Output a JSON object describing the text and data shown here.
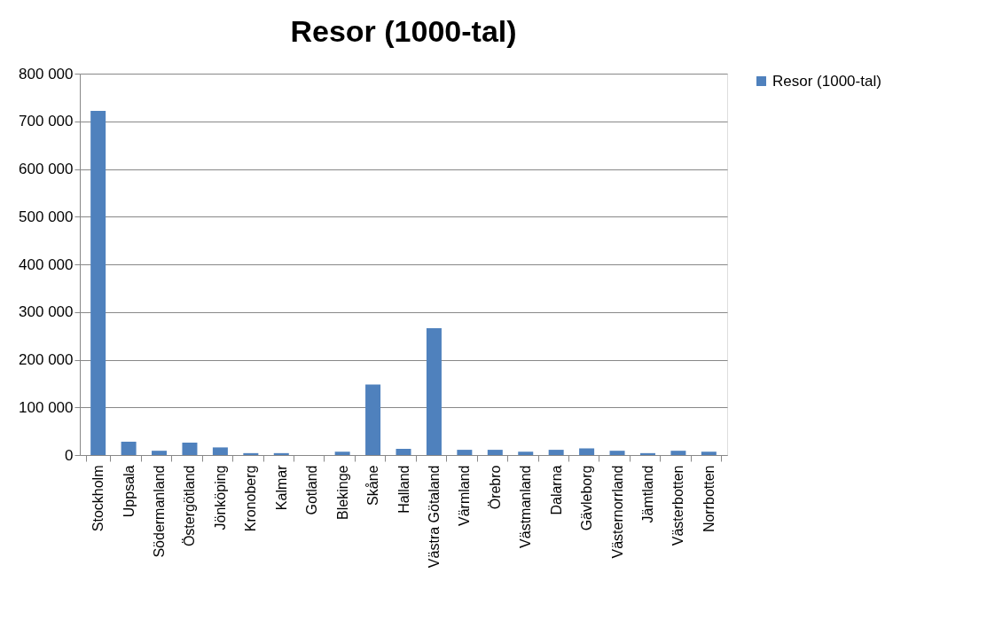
{
  "chart_data": {
    "type": "bar",
    "title": "Resor  (1000-tal)",
    "categories": [
      "Stockholm",
      "Uppsala",
      "Södermanland",
      "Östergötland",
      "Jönköping",
      "Kronoberg",
      "Kalmar",
      "Gotland",
      "Blekinge",
      "Skåne",
      "Halland",
      "Västra Götaland",
      "Värmland",
      "Örebro",
      "Västmanland",
      "Dalarna",
      "Gävleborg",
      "Västernorrland",
      "Jämtland",
      "Västerbotten",
      "Norrbotten"
    ],
    "series": [
      {
        "name": "Resor  (1000-tal)",
        "color": "#4f81bd",
        "values": [
          722000,
          28000,
          9000,
          26000,
          16000,
          4000,
          4000,
          0,
          7000,
          148000,
          13000,
          266000,
          11000,
          11000,
          7000,
          11000,
          14000,
          9000,
          4000,
          9000,
          7000
        ]
      }
    ],
    "ylim": [
      0,
      800000
    ],
    "yticks": [
      {
        "value": 0,
        "label": "0"
      },
      {
        "value": 100000,
        "label": "100 000"
      },
      {
        "value": 200000,
        "label": "200 000"
      },
      {
        "value": 300000,
        "label": "300 000"
      },
      {
        "value": 400000,
        "label": "400 000"
      },
      {
        "value": 500000,
        "label": "500 000"
      },
      {
        "value": 600000,
        "label": "600 000"
      },
      {
        "value": 700000,
        "label": "700 000"
      },
      {
        "value": 800000,
        "label": "800 000"
      }
    ],
    "grid": "y",
    "legend": "right"
  }
}
